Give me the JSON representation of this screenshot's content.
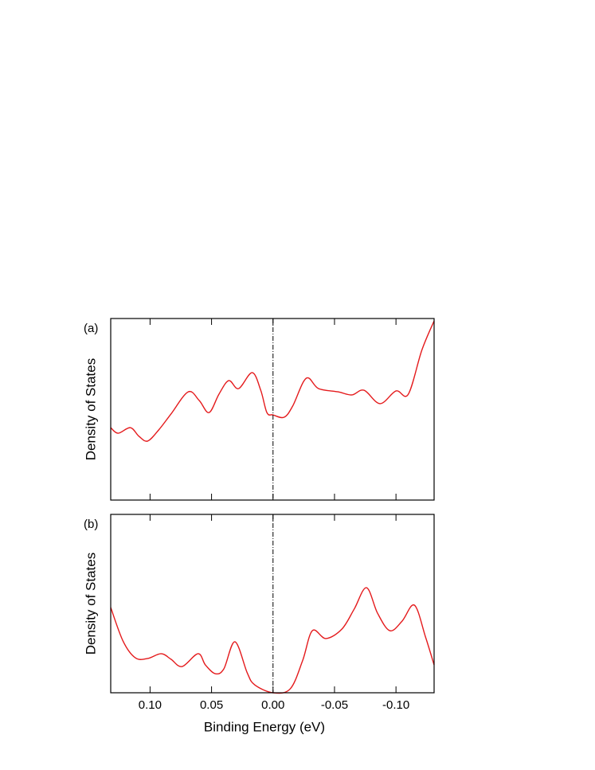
{
  "chart_data": [
    {
      "type": "line",
      "panel_label": "(a)",
      "ylabel": "Density of States",
      "x": [
        0.132,
        0.126,
        0.116,
        0.109,
        0.102,
        0.093,
        0.083,
        0.069,
        0.06,
        0.052,
        0.044,
        0.036,
        0.028,
        0.017,
        0.01,
        0.005,
        0.0,
        -0.009,
        -0.016,
        -0.027,
        -0.037,
        -0.053,
        -0.064,
        -0.074,
        -0.087,
        -0.1,
        -0.11,
        -0.121,
        -0.131
      ],
      "values": [
        0.399,
        0.368,
        0.399,
        0.351,
        0.325,
        0.386,
        0.474,
        0.596,
        0.548,
        0.482,
        0.583,
        0.658,
        0.614,
        0.702,
        0.605,
        0.482,
        0.469,
        0.456,
        0.518,
        0.671,
        0.614,
        0.596,
        0.579,
        0.605,
        0.531,
        0.601,
        0.583,
        0.825,
        0.987
      ],
      "color": "#e41a1c",
      "xlim": [
        0.132,
        -0.131
      ],
      "ylim": [
        0,
        1
      ],
      "xticks": [
        0.1,
        0.05,
        0,
        -0.05,
        -0.1
      ],
      "vline": 0
    },
    {
      "type": "line",
      "panel_label": "(b)",
      "ylabel": "Density of States",
      "xlabel": "Binding Energy (eV)",
      "x": [
        0.132,
        0.122,
        0.112,
        0.102,
        0.091,
        0.083,
        0.074,
        0.061,
        0.055,
        0.047,
        0.04,
        0.031,
        0.021,
        0.015,
        0.0,
        -0.014,
        -0.024,
        -0.032,
        -0.043,
        -0.056,
        -0.066,
        -0.076,
        -0.085,
        -0.095,
        -0.105,
        -0.115,
        -0.124,
        -0.131
      ],
      "values": [
        0.478,
        0.29,
        0.196,
        0.192,
        0.219,
        0.188,
        0.147,
        0.219,
        0.156,
        0.107,
        0.134,
        0.286,
        0.112,
        0.045,
        0,
        0.022,
        0.179,
        0.348,
        0.304,
        0.357,
        0.469,
        0.589,
        0.446,
        0.348,
        0.402,
        0.491,
        0.313,
        0.156
      ],
      "color": "#e41a1c",
      "xlim": [
        0.132,
        -0.131
      ],
      "ylim": [
        0,
        1
      ],
      "xticks": [
        {
          "value": 0.1,
          "label": "0.10"
        },
        {
          "value": 0.05,
          "label": "0.05"
        },
        {
          "value": 0,
          "label": "0.00"
        },
        {
          "value": -0.05,
          "label": "-0.05"
        },
        {
          "value": -0.1,
          "label": "-0.10"
        }
      ],
      "vline": 0
    }
  ]
}
